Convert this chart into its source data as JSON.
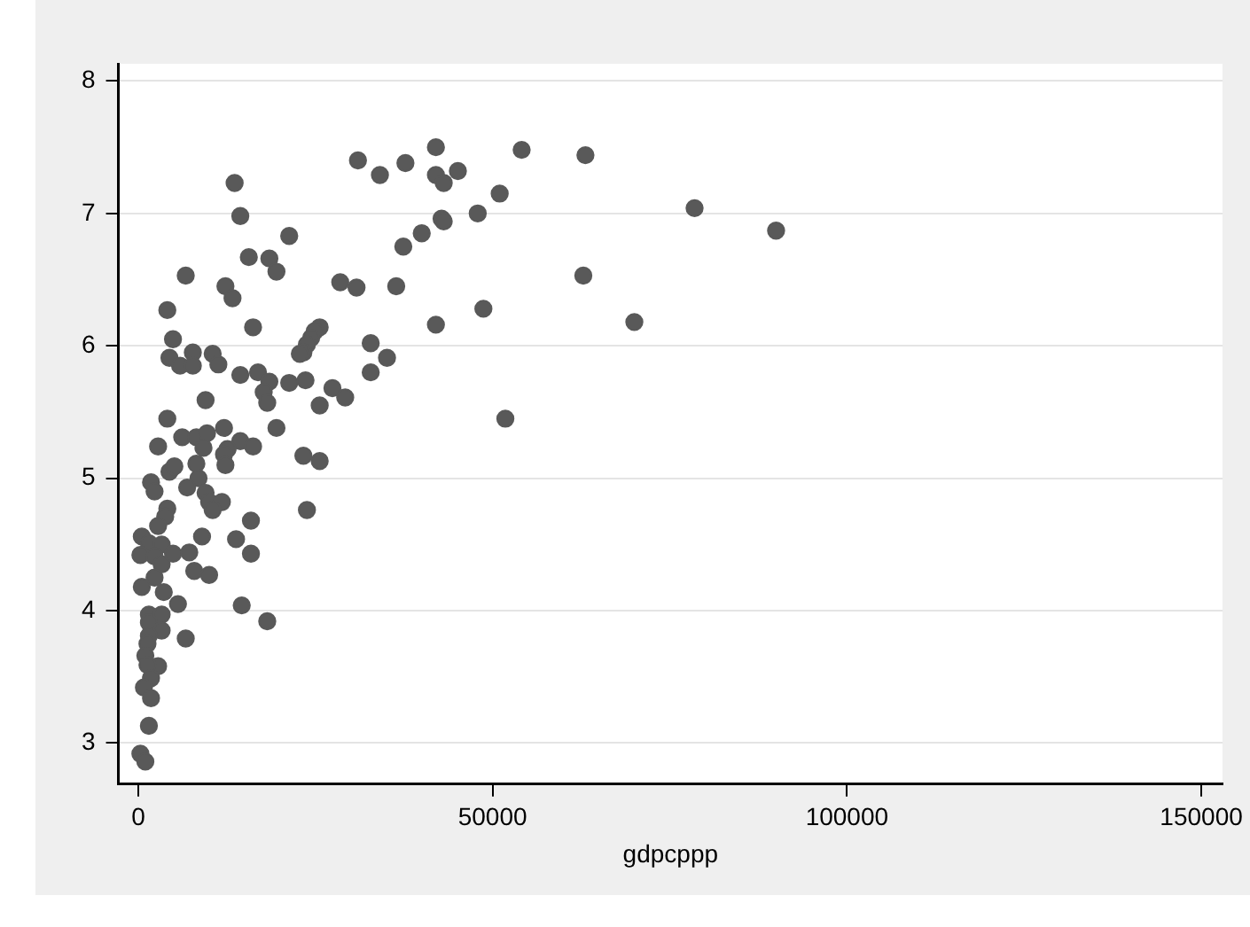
{
  "chart_data": {
    "type": "scatter",
    "xlabel": "gdpcppp",
    "xlim": [
      -2800,
      153000
    ],
    "ylim": [
      2.69,
      8.13
    ],
    "xticks": [
      0,
      50000,
      100000,
      150000
    ],
    "yticks": [
      3,
      4,
      5,
      6,
      7,
      8
    ],
    "grid": "y",
    "marker": "circle",
    "legend": false,
    "series": [
      {
        "color": "#595959",
        "x": [
          42000,
          31000,
          34100,
          37700,
          42000,
          43100,
          45100,
          54100,
          63100,
          78500,
          90000,
          62800,
          70000,
          51800,
          51000,
          13600,
          14400,
          21300,
          15600,
          18500,
          19500,
          6700,
          12300,
          13300,
          28500,
          30800,
          36400,
          42000,
          48700,
          37400,
          40000,
          42800,
          43100,
          47900,
          4100,
          16200,
          4900,
          4400,
          5900,
          7700,
          7700,
          10500,
          11300,
          14400,
          16900,
          18500,
          17700,
          18200,
          21300,
          23600,
          25600,
          24900,
          24400,
          23800,
          23300,
          22800,
          32800,
          35100,
          32800,
          27400,
          29200,
          25600,
          9500,
          4100,
          2800,
          12100,
          19500,
          6200,
          8200,
          9700,
          9200,
          14400,
          16200,
          12600,
          12100,
          12300,
          8200,
          4400,
          5100,
          23300,
          25600,
          1800,
          2300,
          8500,
          6900,
          9500,
          10000,
          11800,
          10500,
          4100,
          3800,
          23800,
          2800,
          15900,
          500,
          1500,
          3300,
          9000,
          13800,
          300,
          2300,
          3300,
          4900,
          7200,
          15900,
          7900,
          10000,
          2300,
          500,
          3600,
          5600,
          14600,
          18200,
          1500,
          3300,
          1500,
          3300,
          1500,
          6700,
          1300,
          1000,
          2800,
          1300,
          1800,
          800,
          1800,
          1500,
          300,
          1000
        ],
        "values": [
          7.5,
          7.4,
          7.29,
          7.38,
          7.29,
          7.23,
          7.32,
          7.48,
          7.44,
          7.04,
          6.87,
          6.53,
          6.18,
          5.45,
          7.15,
          7.23,
          6.98,
          6.83,
          6.67,
          6.66,
          6.56,
          6.53,
          6.45,
          6.36,
          6.48,
          6.44,
          6.45,
          6.16,
          6.28,
          6.75,
          6.85,
          6.96,
          6.94,
          7.0,
          6.27,
          6.14,
          6.05,
          5.91,
          5.85,
          5.95,
          5.85,
          5.94,
          5.86,
          5.78,
          5.8,
          5.73,
          5.65,
          5.57,
          5.72,
          5.74,
          6.14,
          6.11,
          6.06,
          6.01,
          5.95,
          5.94,
          6.02,
          5.91,
          5.8,
          5.68,
          5.61,
          5.55,
          5.59,
          5.45,
          5.24,
          5.38,
          5.38,
          5.31,
          5.31,
          5.34,
          5.23,
          5.28,
          5.24,
          5.22,
          5.18,
          5.1,
          5.11,
          5.05,
          5.09,
          5.17,
          5.13,
          4.97,
          4.9,
          5.0,
          4.93,
          4.89,
          4.82,
          4.82,
          4.76,
          4.77,
          4.71,
          4.76,
          4.64,
          4.68,
          4.56,
          4.51,
          4.5,
          4.56,
          4.54,
          4.42,
          4.41,
          4.35,
          4.43,
          4.44,
          4.43,
          4.3,
          4.27,
          4.25,
          4.18,
          4.14,
          4.05,
          4.04,
          3.92,
          3.97,
          3.97,
          3.91,
          3.85,
          3.81,
          3.79,
          3.75,
          3.66,
          3.58,
          3.59,
          3.49,
          3.42,
          3.34,
          3.13,
          2.92,
          2.86
        ]
      }
    ]
  }
}
